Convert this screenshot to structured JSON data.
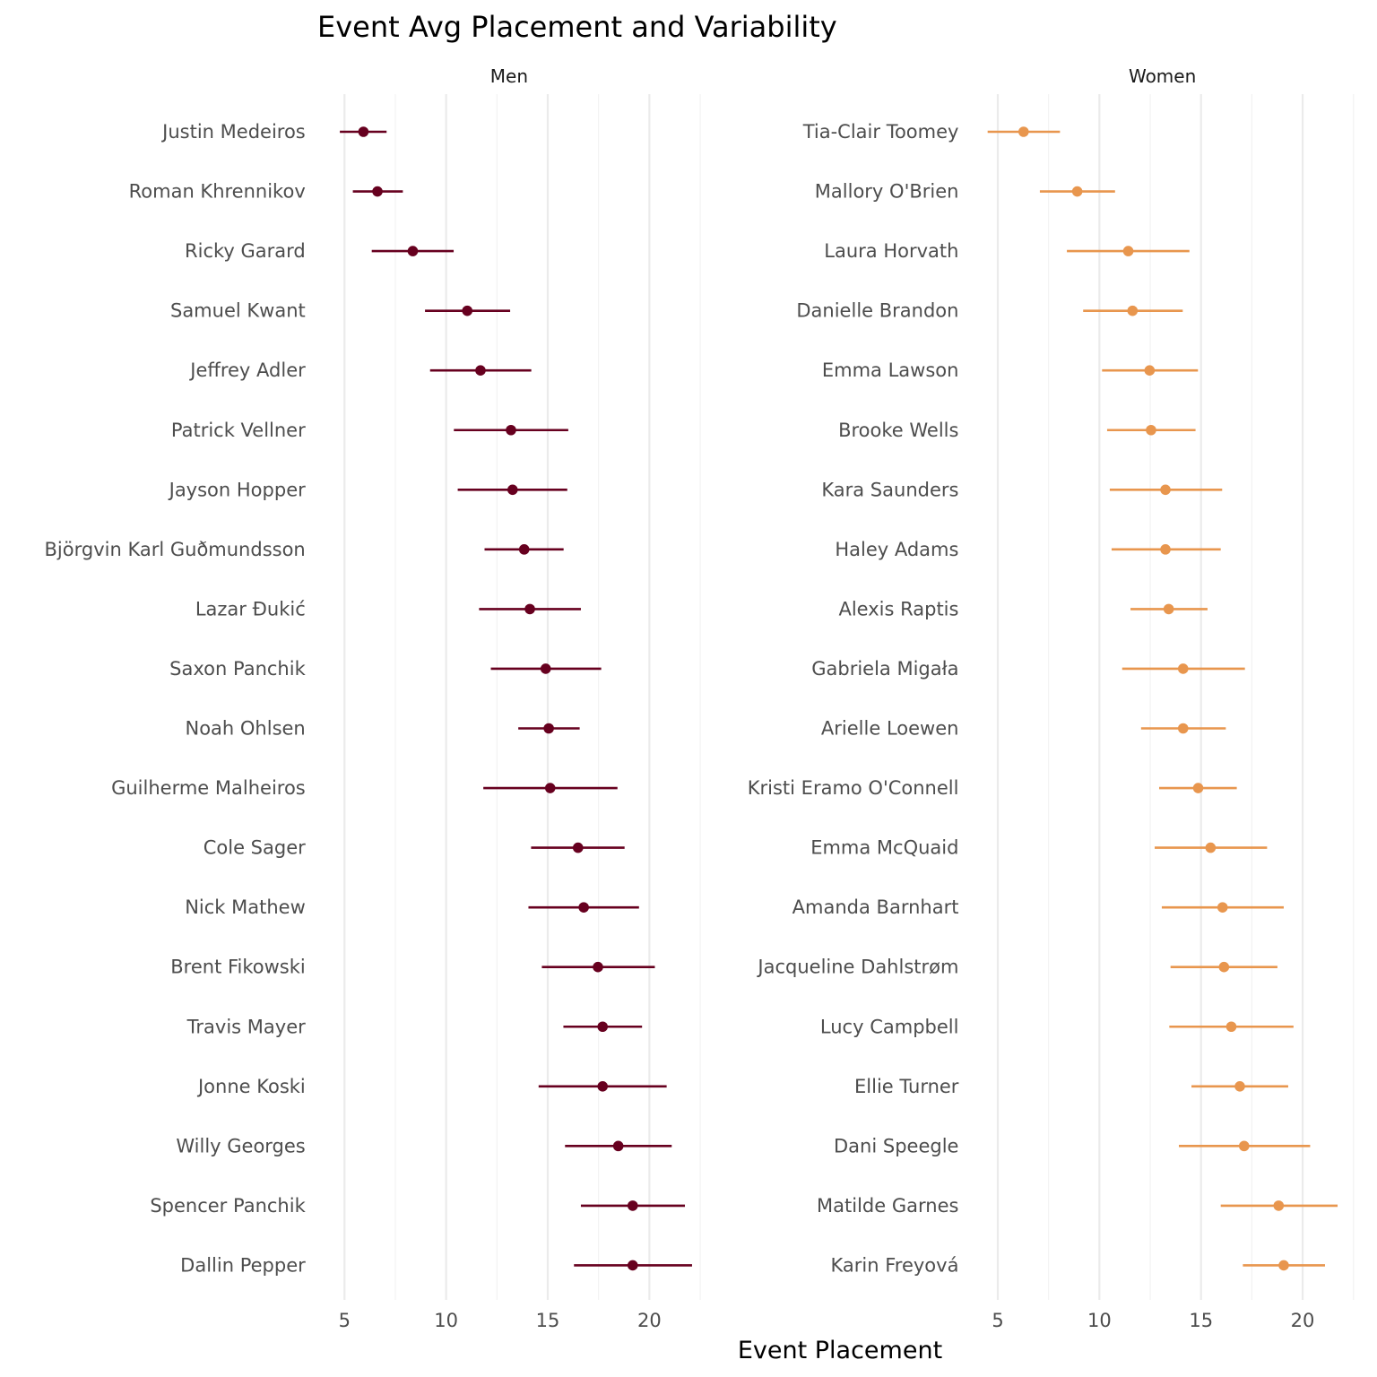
{
  "chart_data": {
    "type": "scatter",
    "subtype": "dot-with-errorbars (mean ± sd), faceted",
    "title": "Event Avg Placement and Variability",
    "xlabel": "Event Placement",
    "ylabel": "",
    "xlim": [
      3.3,
      22.9
    ],
    "x_ticks": [
      5,
      10,
      15,
      20
    ],
    "x_tick_labels": [
      "5",
      "10",
      "15",
      "20"
    ],
    "x_minor_ticks": [
      7.5,
      12.5,
      17.5,
      22.5
    ],
    "grid": "vertical",
    "legend": "none",
    "facets": [
      {
        "name": "Men",
        "color": "#67001f",
        "athletes": [
          {
            "name": "Justin Medeiros",
            "mean": 5.93,
            "low": 4.77,
            "high": 7.07
          },
          {
            "name": "Roman Khrennikov",
            "mean": 6.62,
            "low": 5.41,
            "high": 7.87
          },
          {
            "name": "Ricky Garard",
            "mean": 8.36,
            "low": 6.34,
            "high": 10.37
          },
          {
            "name": "Samuel Kwant",
            "mean": 11.04,
            "low": 8.96,
            "high": 13.15
          },
          {
            "name": "Jeffrey Adler",
            "mean": 11.69,
            "low": 9.21,
            "high": 14.19
          },
          {
            "name": "Patrick Vellner",
            "mean": 13.19,
            "low": 10.38,
            "high": 16.01
          },
          {
            "name": "Jayson Hopper",
            "mean": 13.27,
            "low": 10.57,
            "high": 15.96
          },
          {
            "name": "Björgvin Karl Guðmundsson",
            "mean": 13.84,
            "low": 11.89,
            "high": 15.78
          },
          {
            "name": "Lazar Đukić",
            "mean": 14.12,
            "low": 11.62,
            "high": 16.63
          },
          {
            "name": "Saxon Panchik",
            "mean": 14.9,
            "low": 12.2,
            "high": 17.63
          },
          {
            "name": "Noah Ohlsen",
            "mean": 15.05,
            "low": 13.55,
            "high": 16.57
          },
          {
            "name": "Guilherme Malheiros",
            "mean": 15.12,
            "low": 11.83,
            "high": 18.43
          },
          {
            "name": "Cole Sager",
            "mean": 16.49,
            "low": 14.18,
            "high": 18.78
          },
          {
            "name": "Nick Mathew",
            "mean": 16.77,
            "low": 14.05,
            "high": 19.49
          },
          {
            "name": "Brent Fikowski",
            "mean": 17.47,
            "low": 14.71,
            "high": 20.27
          },
          {
            "name": "Travis Mayer",
            "mean": 17.7,
            "low": 15.77,
            "high": 19.64
          },
          {
            "name": "Jonne Koski",
            "mean": 17.7,
            "low": 14.55,
            "high": 20.85
          },
          {
            "name": "Willy Georges",
            "mean": 18.47,
            "low": 15.85,
            "high": 21.1
          },
          {
            "name": "Spencer Panchik",
            "mean": 19.18,
            "low": 16.63,
            "high": 21.75
          },
          {
            "name": "Dallin Pepper",
            "mean": 19.18,
            "low": 16.29,
            "high": 22.1
          }
        ]
      },
      {
        "name": "Women",
        "color": "#e8964e",
        "athletes": [
          {
            "name": "Tia-Clair Toomey",
            "mean": 6.27,
            "low": 4.5,
            "high": 8.06
          },
          {
            "name": "Mallory O'Brien",
            "mean": 8.91,
            "low": 7.07,
            "high": 10.77
          },
          {
            "name": "Laura Horvath",
            "mean": 11.42,
            "low": 8.4,
            "high": 14.43
          },
          {
            "name": "Danielle Brandon",
            "mean": 11.63,
            "low": 9.2,
            "high": 14.1
          },
          {
            "name": "Emma Lawson",
            "mean": 12.47,
            "low": 10.13,
            "high": 14.85
          },
          {
            "name": "Brooke Wells",
            "mean": 12.54,
            "low": 10.38,
            "high": 14.73
          },
          {
            "name": "Kara Saunders",
            "mean": 13.25,
            "low": 10.51,
            "high": 16.04
          },
          {
            "name": "Haley Adams",
            "mean": 13.25,
            "low": 10.6,
            "high": 15.97
          },
          {
            "name": "Alexis Raptis",
            "mean": 13.41,
            "low": 11.53,
            "high": 15.32
          },
          {
            "name": "Gabriela Migała",
            "mean": 14.12,
            "low": 11.12,
            "high": 17.16
          },
          {
            "name": "Arielle Loewen",
            "mean": 14.12,
            "low": 12.05,
            "high": 16.22
          },
          {
            "name": "Kristi Eramo O'Connell",
            "mean": 14.86,
            "low": 12.94,
            "high": 16.76
          },
          {
            "name": "Emma McQuaid",
            "mean": 15.47,
            "low": 12.72,
            "high": 18.25
          },
          {
            "name": "Amanda Barnhart",
            "mean": 16.06,
            "low": 13.07,
            "high": 19.07
          },
          {
            "name": "Jacqueline Dahlstrøm",
            "mean": 16.13,
            "low": 13.5,
            "high": 18.76
          },
          {
            "name": "Lucy Campbell",
            "mean": 16.49,
            "low": 13.44,
            "high": 19.55
          },
          {
            "name": "Ellie Turner",
            "mean": 16.91,
            "low": 14.53,
            "high": 19.29
          },
          {
            "name": "Dani Speegle",
            "mean": 17.12,
            "low": 13.91,
            "high": 20.37
          },
          {
            "name": "Matilde Garnes",
            "mean": 18.82,
            "low": 15.97,
            "high": 21.72
          },
          {
            "name": "Karin Freyová",
            "mean": 19.07,
            "low": 17.06,
            "high": 21.1
          }
        ]
      }
    ]
  }
}
